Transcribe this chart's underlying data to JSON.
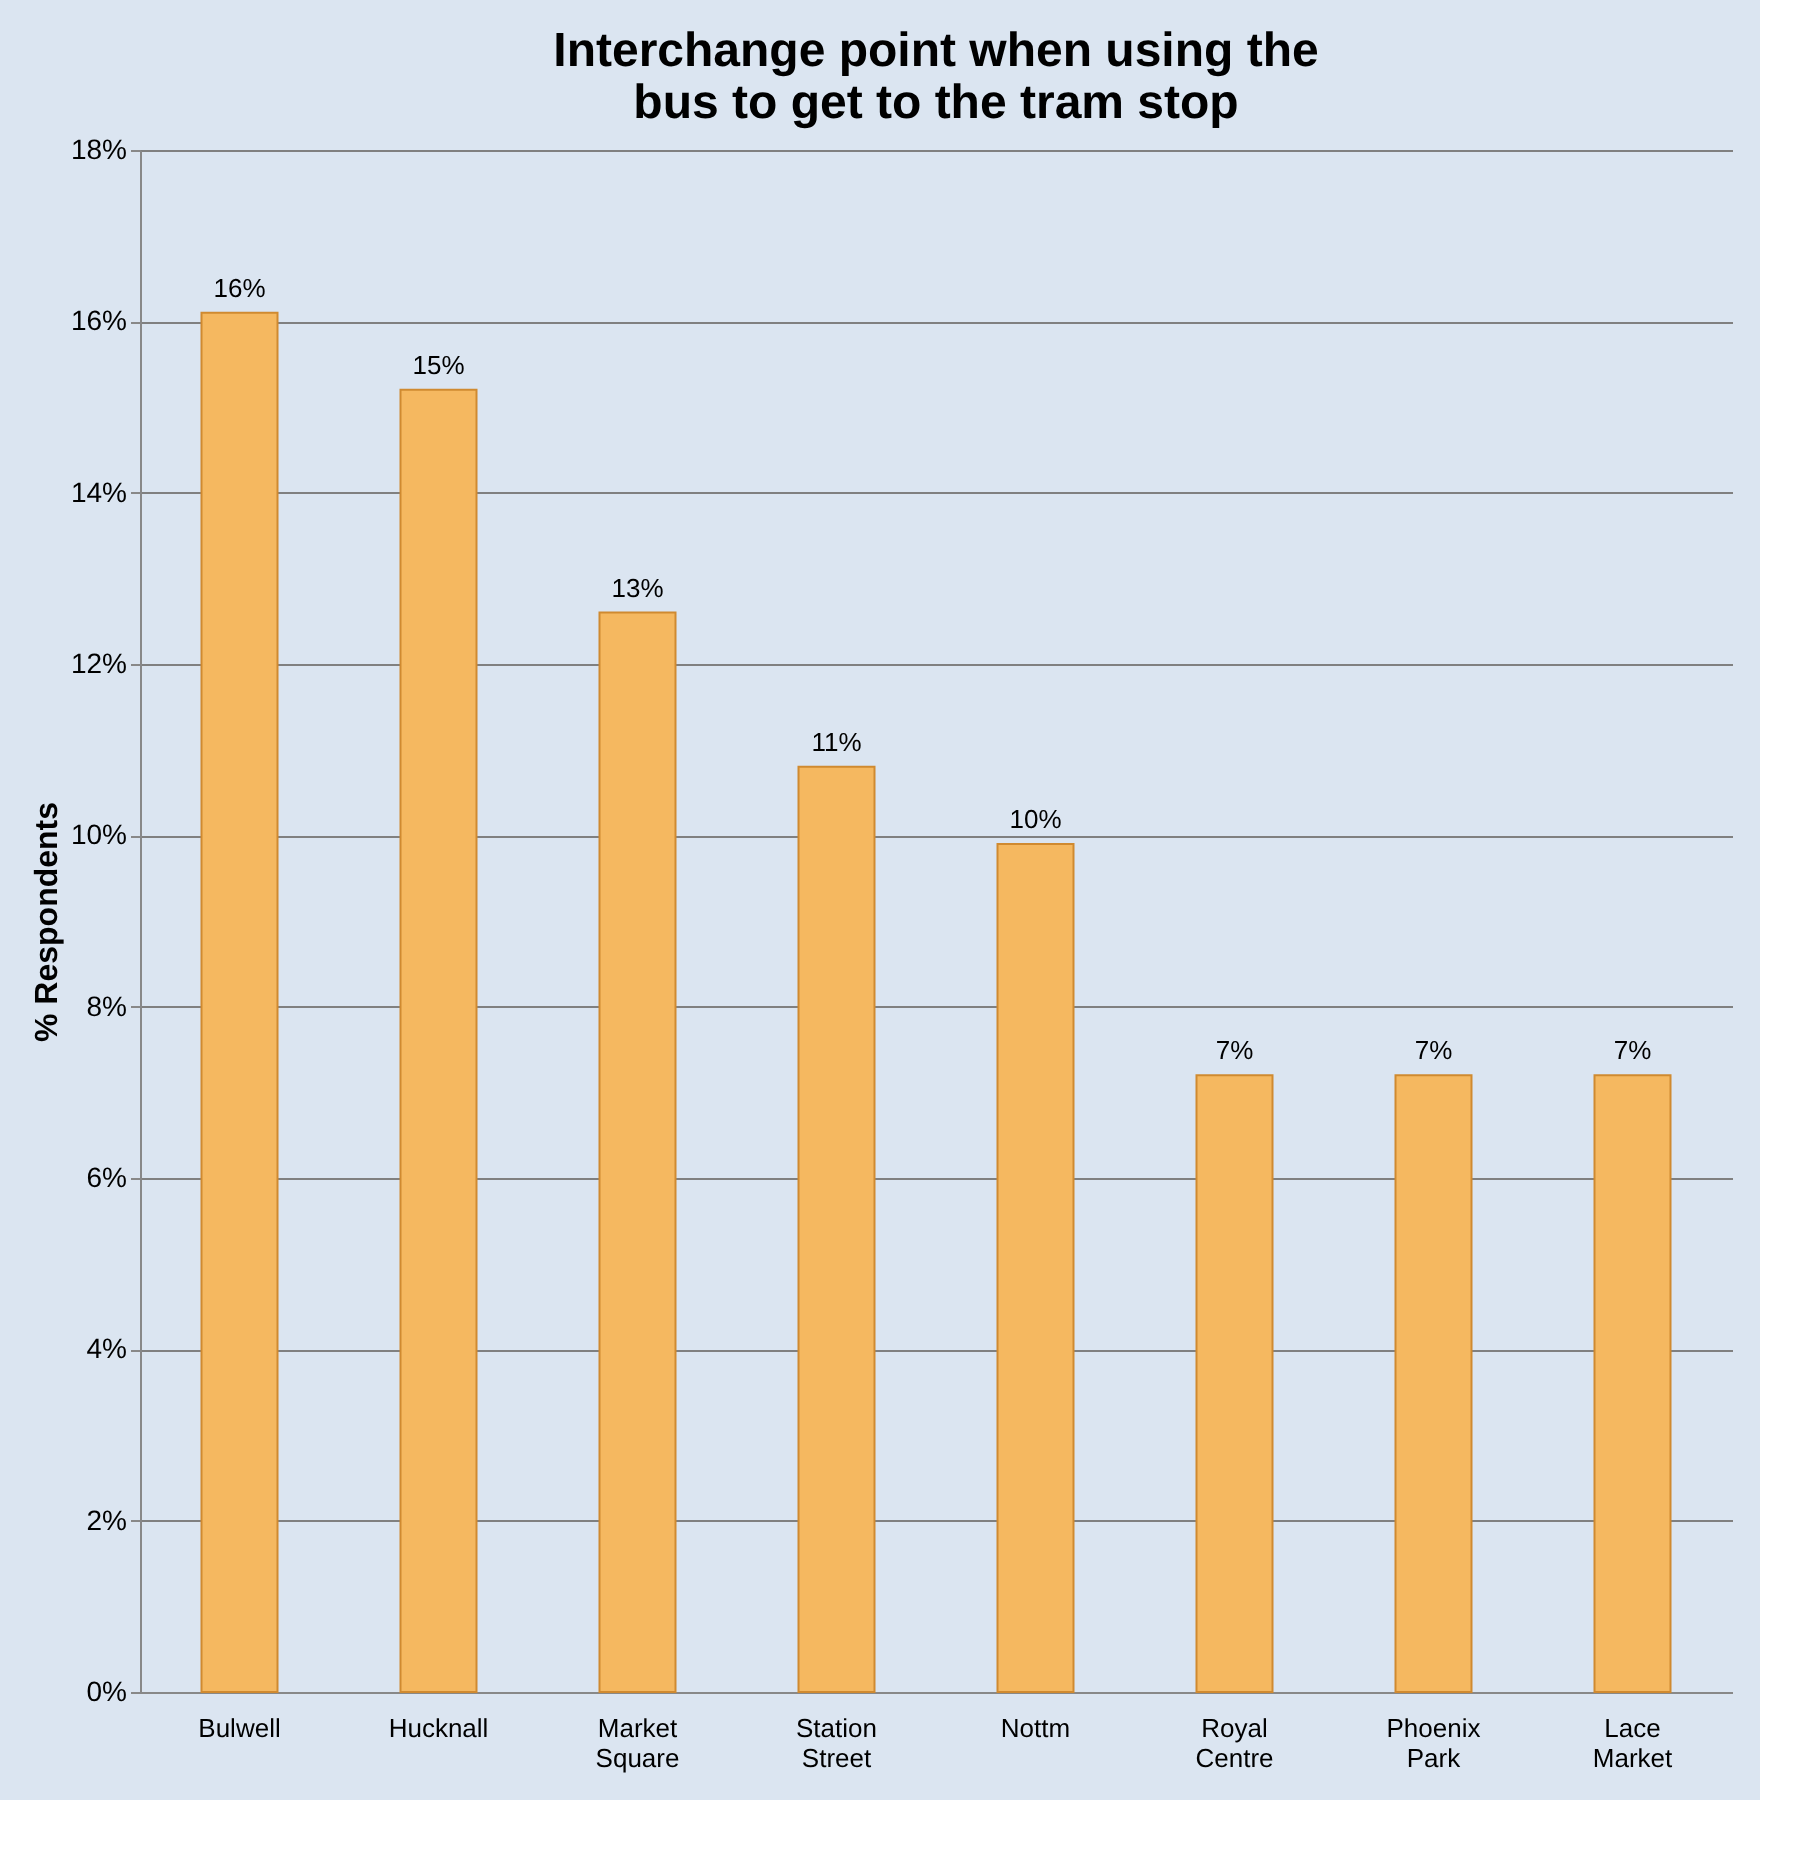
{
  "chart_data": {
    "type": "bar",
    "title": "Interchange point when using the bus to get to the tram stop",
    "ylabel": "% Respondents",
    "categories": [
      "Bulwell",
      "Hucknall",
      "Market Square",
      "Station Street",
      "Nottm",
      "Royal Centre",
      "Phoenix Park",
      "Lace Market"
    ],
    "values": [
      16.1,
      15.2,
      12.6,
      10.8,
      9.9,
      7.2,
      7.2,
      7.2
    ],
    "value_labels": [
      "16%",
      "15%",
      "13%",
      "11%",
      "10%",
      "7%",
      "7%",
      "7%"
    ],
    "color": "#f5b860",
    "ylim": [
      0,
      18
    ],
    "yticks": [
      {
        "value": 0,
        "label": "0%"
      },
      {
        "value": 2,
        "label": "2%"
      },
      {
        "value": 4,
        "label": "4%"
      },
      {
        "value": 6,
        "label": "6%"
      },
      {
        "value": 8,
        "label": "8%"
      },
      {
        "value": 10,
        "label": "10%"
      },
      {
        "value": 12,
        "label": "12%"
      },
      {
        "value": 14,
        "label": "14%"
      },
      {
        "value": 16,
        "label": "16%"
      },
      {
        "value": 18,
        "label": "18%"
      }
    ],
    "grid": "y"
  }
}
